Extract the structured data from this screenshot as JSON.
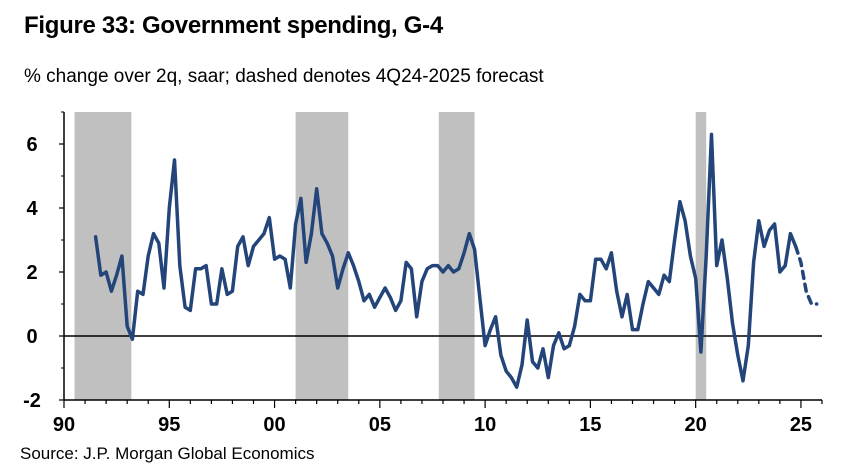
{
  "header": {
    "title": "Figure 33: Government spending, G-4",
    "subtitle": "% change over 2q, saar; dashed denotes 4Q24-2025 forecast"
  },
  "footer": {
    "source": "Source: J.P. Morgan Global Economics"
  },
  "chart_data": {
    "type": "line",
    "title": "Figure 33: Government spending, G-4",
    "subtitle": "% change over 2q, saar; dashed denotes 4Q24-2025 forecast",
    "xlim": [
      1990,
      2026
    ],
    "ylim": [
      -2,
      7
    ],
    "x_ticks": [
      1990,
      1995,
      2000,
      2005,
      2010,
      2015,
      2020,
      2025
    ],
    "x_tick_labels": [
      "90",
      "95",
      "00",
      "05",
      "10",
      "15",
      "20",
      "25"
    ],
    "y_ticks": [
      -2,
      0,
      2,
      4,
      6
    ],
    "y_tick_labels": [
      "-2",
      "0",
      "2",
      "4",
      "6"
    ],
    "zero_line": true,
    "grid": false,
    "line_color": "#23457a",
    "recession_color": "#c0c0c0",
    "recession_bands": [
      [
        1990.5,
        1993.2
      ],
      [
        2001.0,
        2003.5
      ],
      [
        2007.8,
        2009.5
      ],
      [
        2020.0,
        2020.5
      ]
    ],
    "series": [
      {
        "style": "solid",
        "x": [
          1991.5,
          1991.75,
          1992.0,
          1992.25,
          1992.5,
          1992.75,
          1993.0,
          1993.25,
          1993.5,
          1993.75,
          1994.0,
          1994.25,
          1994.5,
          1994.75,
          1995.0,
          1995.25,
          1995.5,
          1995.75,
          1996.0,
          1996.25,
          1996.5,
          1996.75,
          1997.0,
          1997.25,
          1997.5,
          1997.75,
          1998.0,
          1998.25,
          1998.5,
          1998.75,
          1999.0,
          1999.25,
          1999.5,
          1999.75,
          2000.0,
          2000.25,
          2000.5,
          2000.75,
          2001.0,
          2001.25,
          2001.5,
          2001.75,
          2002.0,
          2002.25,
          2002.5,
          2002.75,
          2003.0,
          2003.25,
          2003.5,
          2003.75,
          2004.0,
          2004.25,
          2004.5,
          2004.75,
          2005.0,
          2005.25,
          2005.5,
          2005.75,
          2006.0,
          2006.25,
          2006.5,
          2006.75,
          2007.0,
          2007.25,
          2007.5,
          2007.75,
          2008.0,
          2008.25,
          2008.5,
          2008.75,
          2009.0,
          2009.25,
          2009.5,
          2009.75,
          2010.0,
          2010.25,
          2010.5,
          2010.75,
          2011.0,
          2011.25,
          2011.5,
          2011.75,
          2012.0,
          2012.25,
          2012.5,
          2012.75,
          2013.0,
          2013.25,
          2013.5,
          2013.75,
          2014.0,
          2014.25,
          2014.5,
          2014.75,
          2015.0,
          2015.25,
          2015.5,
          2015.75,
          2016.0,
          2016.25,
          2016.5,
          2016.75,
          2017.0,
          2017.25,
          2017.5,
          2017.75,
          2018.0,
          2018.25,
          2018.5,
          2018.75,
          2019.0,
          2019.25,
          2019.5,
          2019.75,
          2020.0,
          2020.25,
          2020.5,
          2020.75,
          2021.0,
          2021.25,
          2021.5,
          2021.75,
          2022.0,
          2022.25,
          2022.5,
          2022.75,
          2023.0,
          2023.25,
          2023.5,
          2023.75,
          2024.0,
          2024.25,
          2024.5,
          2024.75
        ],
        "y": [
          3.1,
          1.9,
          2.0,
          1.4,
          1.9,
          2.5,
          0.3,
          -0.1,
          1.4,
          1.3,
          2.5,
          3.2,
          2.9,
          1.5,
          4.0,
          5.5,
          2.2,
          0.9,
          0.8,
          2.1,
          2.1,
          2.2,
          1.0,
          1.0,
          2.1,
          1.3,
          1.4,
          2.8,
          3.1,
          2.2,
          2.8,
          3.0,
          3.2,
          3.7,
          2.4,
          2.5,
          2.4,
          1.5,
          3.5,
          4.3,
          2.3,
          3.2,
          4.6,
          3.2,
          2.9,
          2.5,
          1.5,
          2.1,
          2.6,
          2.2,
          1.7,
          1.1,
          1.3,
          0.9,
          1.2,
          1.5,
          1.2,
          0.8,
          1.1,
          2.3,
          2.1,
          0.6,
          1.7,
          2.1,
          2.2,
          2.2,
          2.0,
          2.2,
          2.0,
          2.1,
          2.6,
          3.2,
          2.7,
          1.2,
          -0.3,
          0.2,
          0.6,
          -0.6,
          -1.1,
          -1.3,
          -1.6,
          -0.9,
          0.5,
          -0.8,
          -1.0,
          -0.4,
          -1.3,
          -0.3,
          0.1,
          -0.4,
          -0.3,
          0.3,
          1.3,
          1.1,
          1.1,
          2.4,
          2.4,
          2.1,
          2.6,
          1.4,
          0.6,
          1.3,
          0.2,
          0.2,
          1.0,
          1.7,
          1.5,
          1.3,
          1.9,
          1.7,
          3.0,
          4.2,
          3.6,
          2.5,
          1.8,
          -0.5,
          2.5,
          6.3,
          2.2,
          3.0,
          1.8,
          0.4,
          -0.6,
          -1.4,
          -0.3,
          2.3,
          3.6,
          2.8,
          3.3,
          3.5,
          2.0,
          2.2,
          3.2,
          2.8
        ]
      },
      {
        "style": "dashed",
        "x": [
          2024.75,
          2025.0,
          2025.25,
          2025.5,
          2025.75
        ],
        "y": [
          2.8,
          2.3,
          1.4,
          1.0,
          1.0
        ]
      }
    ]
  }
}
